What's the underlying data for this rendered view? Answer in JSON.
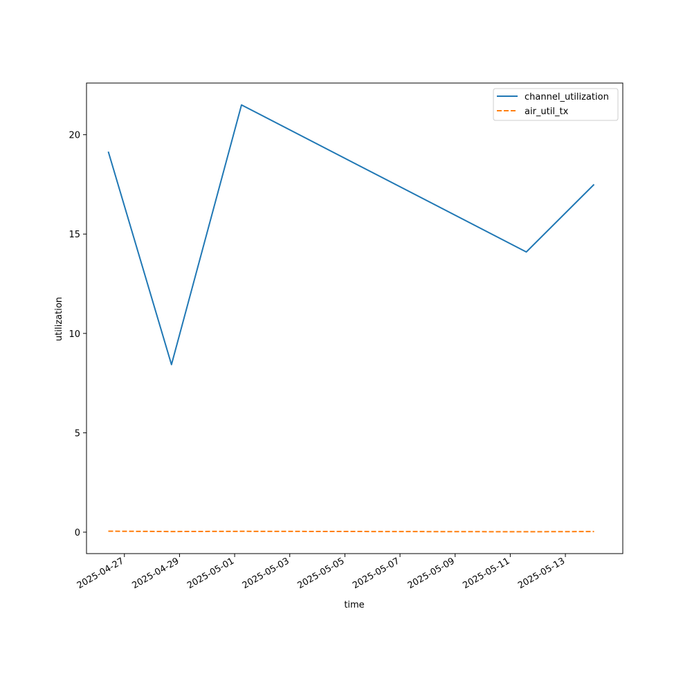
{
  "chart_data": {
    "type": "line",
    "title": "",
    "xlabel": "time",
    "ylabel": "utilization",
    "x_type": "date",
    "x_tick_labels": [
      "2025-04-27",
      "2025-04-29",
      "2025-05-01",
      "2025-05-03",
      "2025-05-05",
      "2025-05-07",
      "2025-05-09",
      "2025-05-11",
      "2025-05-13"
    ],
    "y_ticks": [
      0,
      5,
      10,
      15,
      20
    ],
    "ylim": [
      -1.08,
      22.6
    ],
    "xlim": [
      "2025-04-25T15:00",
      "2025-05-15T02:00"
    ],
    "grid": false,
    "legend_position": "upper right",
    "series": [
      {
        "name": "channel_utilization",
        "color": "#1f77b4",
        "style": "solid",
        "points": [
          {
            "x": "2025-04-26T10:00",
            "y": 19.15
          },
          {
            "x": "2025-04-28T17:00",
            "y": 8.43
          },
          {
            "x": "2025-05-01T06:00",
            "y": 21.5
          },
          {
            "x": "2025-05-11T14:00",
            "y": 14.1
          },
          {
            "x": "2025-05-14T01:00",
            "y": 17.5
          }
        ]
      },
      {
        "name": "air_util_tx",
        "color": "#ff7f0e",
        "style": "dashed",
        "points": [
          {
            "x": "2025-04-26T10:00",
            "y": 0.05
          },
          {
            "x": "2025-04-28T17:00",
            "y": 0.03
          },
          {
            "x": "2025-05-01T06:00",
            "y": 0.04
          },
          {
            "x": "2025-05-11T14:00",
            "y": 0.02
          },
          {
            "x": "2025-05-14T01:00",
            "y": 0.03
          }
        ]
      }
    ]
  }
}
